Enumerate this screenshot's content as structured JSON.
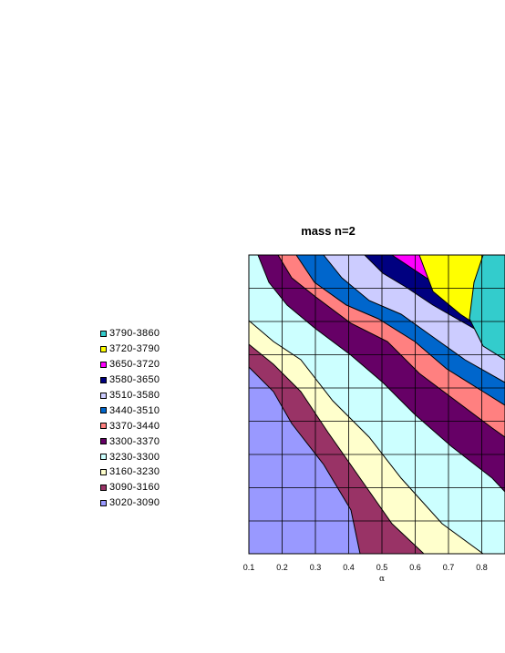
{
  "chart_data": {
    "type": "contour",
    "title": "mass n=2",
    "xlabel": "α",
    "ylabel": "",
    "x_ticks": [
      "0.1",
      "0.2",
      "0.3",
      "0.4",
      "0.5",
      "0.6",
      "0.7",
      "0.8"
    ],
    "xlim": [
      0.1,
      0.9
    ],
    "grid": true,
    "legend_position": "left",
    "levels": [
      {
        "label": "3790-3860",
        "color": "#33cccc"
      },
      {
        "label": "3720-3790",
        "color": "#ffff00"
      },
      {
        "label": "3650-3720",
        "color": "#ff00ff"
      },
      {
        "label": "3580-3650",
        "color": "#000080"
      },
      {
        "label": "3510-3580",
        "color": "#ccccff"
      },
      {
        "label": "3440-3510",
        "color": "#0066cc"
      },
      {
        "label": "3370-3440",
        "color": "#ff8080"
      },
      {
        "label": "3300-3370",
        "color": "#660066"
      },
      {
        "label": "3230-3300",
        "color": "#ccffff"
      },
      {
        "label": "3160-3230",
        "color": "#ffffcc"
      },
      {
        "label": "3090-3160",
        "color": "#993366"
      },
      {
        "label": "3020-3090",
        "color": "#9999ff"
      }
    ]
  }
}
